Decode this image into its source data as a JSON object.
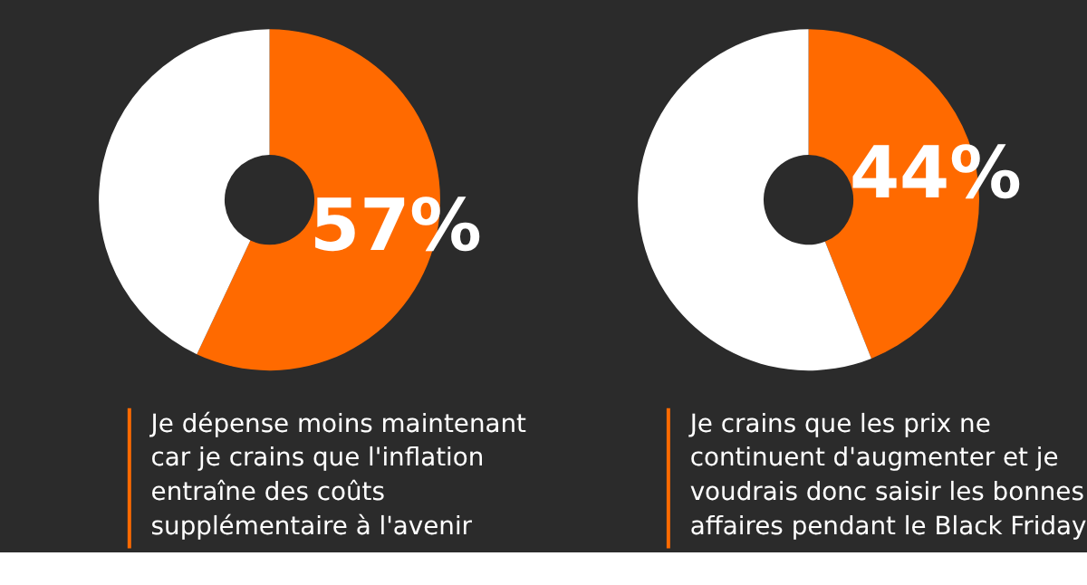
{
  "chart_data": [
    {
      "type": "donut",
      "categories": [
        null,
        null
      ],
      "values": [
        57,
        43
      ],
      "colors": [
        "#ff6a00",
        "#ffffff"
      ],
      "value_labels": [
        "57%",
        null
      ],
      "annotations": [
        "Je dépense moins maintenant\ncar je crains que l'inflation\nentraîne des coûts\nsupplémentaire à l'avenir"
      ]
    },
    {
      "type": "donut",
      "categories": [
        null,
        null
      ],
      "values": [
        44,
        56
      ],
      "colors": [
        "#ff6a00",
        "#ffffff"
      ],
      "value_labels": [
        "44%",
        null
      ],
      "annotations": [
        "Je crains que les prix ne\ncontinuent d'augmenter et je\nvoudrais donc saisir les bonnes\naffaires pendant le Black Friday"
      ]
    }
  ]
}
